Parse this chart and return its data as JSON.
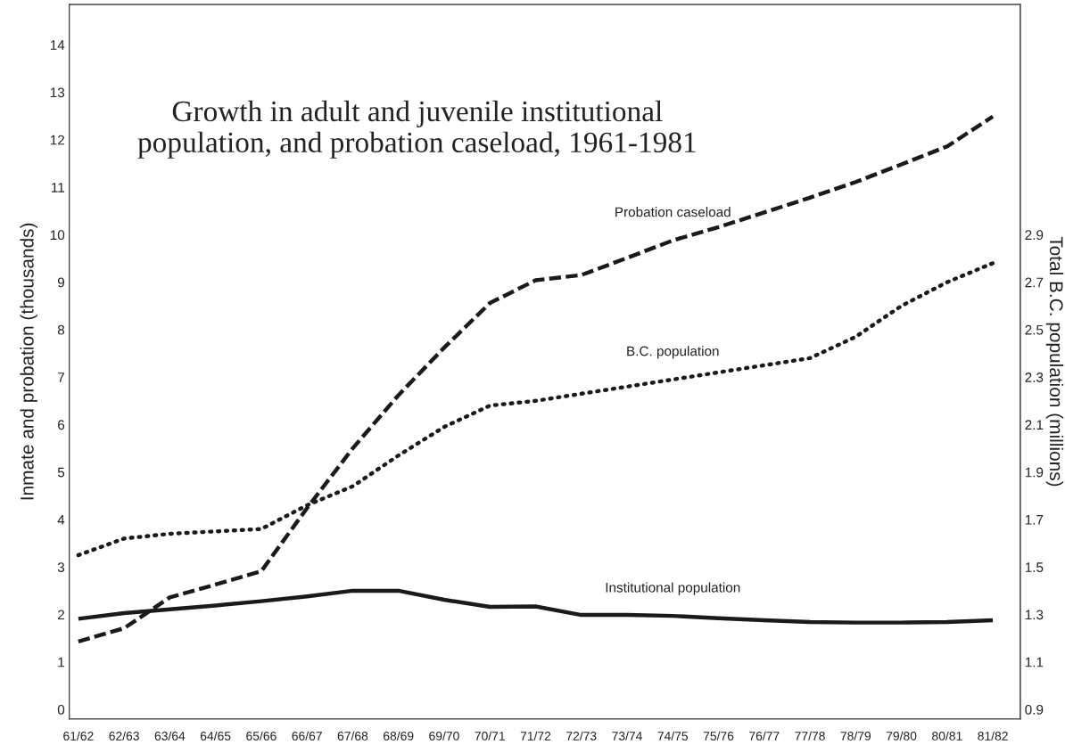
{
  "chart_data": {
    "type": "line",
    "title": "Growth in adult and juvenile institutional\npopulation, and probation caseload, 1961-1981",
    "ylabel": "Inmate and probation (thousands)",
    "y2label": "Total B.C. population (millions)",
    "categories": [
      "61/62",
      "62/63",
      "63/64",
      "64/65",
      "65/66",
      "66/67",
      "67/68",
      "68/69",
      "69/70",
      "70/71",
      "71/72",
      "72/73",
      "73/74",
      "74/75",
      "75/76",
      "76/77",
      "77/78",
      "78/79",
      "79/80",
      "80/81",
      "81/82"
    ],
    "series": [
      {
        "name": "Probation caseload",
        "color": "#1a1a1a",
        "line_style": "dashed",
        "values": [
          1.43,
          1.71,
          2.36,
          2.63,
          2.91,
          4.24,
          5.5,
          6.62,
          7.62,
          8.56,
          9.04,
          9.15,
          9.51,
          9.88,
          10.16,
          10.47,
          10.78,
          11.11,
          11.48,
          11.86,
          12.49
        ]
      },
      {
        "name": "B.C. population",
        "color": "#1a1a1a",
        "line_style": "dotted",
        "axis": "y2",
        "values": [
          1.55,
          1.62,
          1.64,
          1.65,
          1.66,
          1.76,
          1.84,
          1.97,
          2.09,
          2.18,
          2.2,
          2.23,
          2.26,
          2.29,
          2.32,
          2.35,
          2.38,
          2.47,
          2.6,
          2.7,
          2.78
        ]
      },
      {
        "name": "Institutional population",
        "color": "#1a1a1a",
        "line_style": "solid",
        "values": [
          1.91,
          2.03,
          2.11,
          2.19,
          2.28,
          2.38,
          2.5,
          2.5,
          2.31,
          2.16,
          2.17,
          1.99,
          1.99,
          1.97,
          1.92,
          1.88,
          1.84,
          1.83,
          1.83,
          1.84,
          1.88
        ]
      }
    ],
    "ylim": [
      -0.2,
      14.85
    ],
    "yticks": [
      0,
      1,
      2,
      3,
      4,
      5,
      6,
      7,
      8,
      9,
      10,
      11,
      12,
      13,
      14
    ],
    "y2lim": [
      0.86,
      3.87
    ],
    "y2ticks": [
      0.9,
      1.1,
      1.3,
      1.5,
      1.7,
      1.9,
      2.1,
      2.3,
      2.5,
      2.7,
      2.9
    ],
    "marker": "none",
    "grid": false,
    "legend": false
  }
}
